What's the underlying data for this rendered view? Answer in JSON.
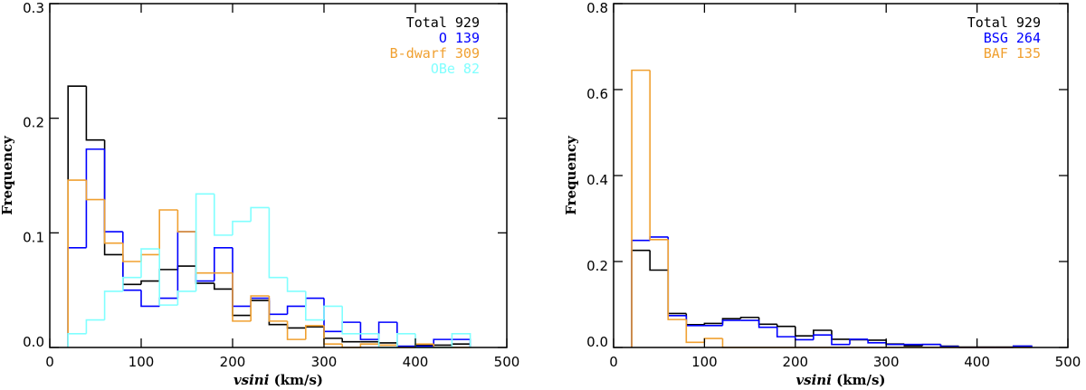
{
  "chart_data": [
    {
      "type": "histogram",
      "xlabel_italic": "vsini",
      "xlabel_rest": " (km/s)",
      "ylabel": "Frequency",
      "xlim": [
        0,
        500
      ],
      "ylim": [
        0,
        0.3
      ],
      "xticks": [
        0,
        100,
        200,
        300,
        400,
        500
      ],
      "yticks": [
        "0.0",
        "0.1",
        "0.2",
        "0.3"
      ],
      "bin_edges_start": 20,
      "bin_width": 20,
      "legend_position": "top-right",
      "series": [
        {
          "name": "Total 929",
          "color": "#000000",
          "values": [
            0.228,
            0.181,
            0.081,
            0.055,
            0.058,
            0.068,
            0.071,
            0.056,
            0.051,
            0.028,
            0.041,
            0.02,
            0.017,
            0.018,
            0.008,
            0.005,
            0.005,
            0.004,
            0.001,
            0.002,
            0.002,
            0.003
          ]
        },
        {
          "name": "O 139",
          "color": "#0000ff",
          "values": [
            0.087,
            0.173,
            0.101,
            0.05,
            0.036,
            0.043,
            0.101,
            0.058,
            0.087,
            0.036,
            0.043,
            0.029,
            0.036,
            0.043,
            0.014,
            0.022,
            0.007,
            0.022,
            0.001,
            0.001,
            0.007,
            0.007
          ]
        },
        {
          "name": "B-dwarf 309",
          "color": "#f0a030",
          "values": [
            0.146,
            0.129,
            0.091,
            0.075,
            0.081,
            0.12,
            0.101,
            0.065,
            0.065,
            0.023,
            0.045,
            0.023,
            0.007,
            0.019,
            0.003,
            0.0,
            0.003,
            0.002,
            0.0,
            0.003,
            0.0,
            0.0
          ]
        },
        {
          "name": "OBe 82",
          "color": "#80ffff",
          "values": [
            0.012,
            0.024,
            0.049,
            0.061,
            0.086,
            0.037,
            0.049,
            0.134,
            0.098,
            0.11,
            0.122,
            0.061,
            0.049,
            0.024,
            0.036,
            0.012,
            0.012,
            0.0,
            0.012,
            0.0,
            0.0,
            0.012
          ]
        }
      ]
    },
    {
      "type": "histogram",
      "xlabel_italic": "vsini",
      "xlabel_rest": " (km/s)",
      "ylabel": "Frequency",
      "xlim": [
        0,
        500
      ],
      "ylim": [
        0,
        0.8
      ],
      "xticks": [
        0,
        100,
        200,
        300,
        400,
        500
      ],
      "yticks": [
        "0.0",
        "0.2",
        "0.4",
        "0.6",
        "0.8"
      ],
      "bin_edges_start": 20,
      "bin_width": 20,
      "legend_position": "top-right",
      "series": [
        {
          "name": "Total 929",
          "color": "#000000",
          "values": [
            0.226,
            0.18,
            0.079,
            0.053,
            0.056,
            0.067,
            0.07,
            0.054,
            0.049,
            0.027,
            0.04,
            0.019,
            0.018,
            0.017,
            0.008,
            0.004,
            0.007,
            0.003,
            0.001,
            0.001,
            0.001,
            0.003
          ]
        },
        {
          "name": "BSG 264",
          "color": "#0000ff",
          "values": [
            0.249,
            0.257,
            0.074,
            0.051,
            0.051,
            0.063,
            0.063,
            0.047,
            0.025,
            0.018,
            0.029,
            0.007,
            0.019,
            0.011,
            0.007,
            0.007,
            0.007,
            0.002,
            0.0,
            0.0,
            0.0,
            0.003
          ]
        },
        {
          "name": "BAF 135",
          "color": "#f0a030",
          "values": [
            0.645,
            0.251,
            0.065,
            0.012,
            0.021,
            0,
            0,
            0,
            0,
            0,
            0,
            0,
            0,
            0,
            0,
            0,
            0,
            0,
            0,
            0,
            0,
            0
          ]
        }
      ]
    }
  ]
}
